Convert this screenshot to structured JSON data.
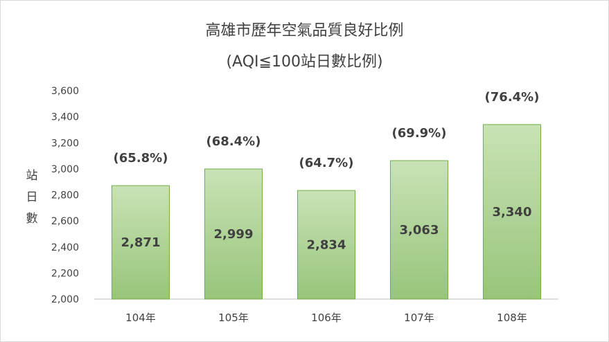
{
  "chart_data": {
    "type": "bar",
    "title": "高雄市歷年空氣品質良好比例",
    "subtitle": "(AQI≦100站日數比例)",
    "ylabel": "站日數",
    "xlabel": "",
    "categories": [
      "104年",
      "105年",
      "106年",
      "107年",
      "108年"
    ],
    "values": [
      2871,
      2999,
      2834,
      3063,
      3340
    ],
    "value_labels": [
      "2,871",
      "2,999",
      "2,834",
      "3,063",
      "3,340"
    ],
    "percent_labels": [
      "(65.8%)",
      "(68.4%)",
      "(64.7%)",
      "(69.9%)",
      "(76.4%)"
    ],
    "ylim": [
      2000,
      3600
    ],
    "yticks": [
      2000,
      2200,
      2400,
      2600,
      2800,
      3000,
      3200,
      3400,
      3600
    ],
    "ytick_labels": [
      "2,000",
      "2,200",
      "2,400",
      "2,600",
      "2,800",
      "3,000",
      "3,200",
      "3,400",
      "3,600"
    ],
    "grid": false,
    "legend": "none",
    "colors": {
      "bar_top": "#c9e2b6",
      "bar_bottom": "#97c57a",
      "bar_border": "#70ad47",
      "text": "#404040",
      "axis": "#bfbfbf"
    }
  }
}
